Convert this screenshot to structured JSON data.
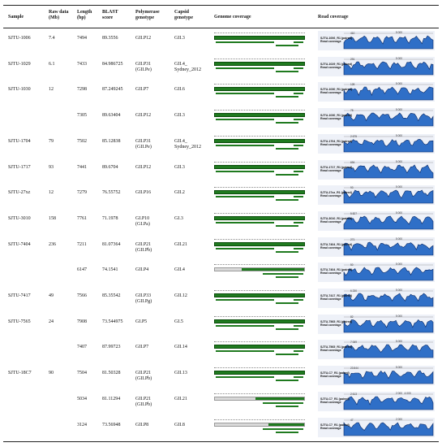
{
  "headers": {
    "sample": "Sample",
    "raw_data": "Raw data\n(Mb)",
    "length": "Length\n(bp)",
    "blast": "BLAST\nscore",
    "polymerase": "Polymerase\ngenotype",
    "capsid": "Capsid\ngenotype",
    "genome_coverage": "Genome coverage",
    "read_coverage": "Read coverage"
  },
  "rows": [
    {
      "sample": "SJTU-1006",
      "raw": "7.4",
      "length": "7494",
      "blast": "89.3556",
      "pol": "GII.P12",
      "cap": "GII.3",
      "read_label": "SJTU-1006_R1 (paired)\nRead coverage",
      "read_max": "410",
      "tick": "5 000",
      "partial": false
    },
    {
      "sample": "SJTU-1029",
      "raw": "6.1",
      "length": "7433",
      "blast": "84.986725",
      "pol": "GII.P31\n(GII.Pe)",
      "cap": "GII.4_\nSydney_2012",
      "read_label": "SJTU-1029_R1 (paired)\nRead coverage",
      "read_max": "291",
      "tick": "5 000",
      "partial": false
    },
    {
      "sample": "SJTU-1030",
      "raw": "12",
      "length": "7298",
      "blast": "87.249245",
      "pol": "GII.P7",
      "cap": "GII.6",
      "read_label": "SJTU-1030_R1 (paired)\nRead coverage",
      "read_max": "128",
      "tick": "5 000",
      "partial": false
    },
    {
      "sample": "",
      "raw": "",
      "length": "7305",
      "blast": "89.63404",
      "pol": "GII.P12",
      "cap": "GII.3",
      "read_label": "SJTU-1030_R1 (paired)\nRead coverage",
      "read_max": "78",
      "tick": "5 000",
      "partial": false
    },
    {
      "sample": "SJTU-1704",
      "raw": "79",
      "length": "7502",
      "blast": "85.12838",
      "pol": "GII.P31\n(GII.Pe)",
      "cap": "GII.4_\nSydney_2012",
      "read_label": "SJTU-1704_R1 (paired)\nRead coverage",
      "read_max": "2 675",
      "tick": "5 000",
      "partial": false
    },
    {
      "sample": "SJTU-1717",
      "raw": "93",
      "length": "7441",
      "blast": "89.6704",
      "pol": "GII.P12",
      "cap": "GII.3",
      "read_label": "SJTU-1717_R1 (paired)\nRead coverage",
      "read_max": "694",
      "tick": "5 000",
      "partial": false
    },
    {
      "sample": "SJTU-27xz",
      "raw": "12",
      "length": "7279",
      "blast": "76.55752",
      "pol": "GII.P16",
      "cap": "GII.2",
      "read_label": "SJTU-27xz_R1 (paired)\nRead coverage",
      "read_max": "93",
      "tick": "5 000",
      "partial": false
    },
    {
      "sample": "SJTU-3010",
      "raw": "158",
      "length": "7761",
      "blast": "71.1978",
      "pol": "GI.P10\n(GI.Pa)",
      "cap": "GI.3",
      "read_label": "SJTU-3010_R1 (paired)\nRead coverage",
      "read_max": "5 827",
      "tick": "5 000",
      "partial": false
    },
    {
      "sample": "SJTU-7404",
      "raw": "236",
      "length": "7211",
      "blast": "81.07364",
      "pol": "GII.P21\n(GII.Pb)",
      "cap": "GII.21",
      "read_label": "SJTU-7404_R1 (paired)\nRead coverage",
      "read_max": "271",
      "tick": "5 000",
      "partial": false
    },
    {
      "sample": "",
      "raw": "",
      "length": "6147",
      "blast": "74.1541",
      "pol": "GII.P4",
      "cap": "GII.4",
      "read_label": "SJTU-7404_R1 (paired)\nRead coverage",
      "read_max": "50",
      "tick": "5 000",
      "partial": true
    },
    {
      "sample": "SJTU-7417",
      "raw": "49",
      "length": "7566",
      "blast": "85.35542",
      "pol": "GII.P33\n(GII.Pg)",
      "cap": "GII.12",
      "read_label": "SJTU-7417_R1 (paired)\nRead coverage",
      "read_max": "6 230",
      "tick": "5 000",
      "partial": false
    },
    {
      "sample": "SJTU-7565",
      "raw": "24",
      "length": "7908",
      "blast": "73.544975",
      "pol": "GI.P5",
      "cap": "GI.5",
      "read_label": "SJTU-7565_R1 (paired)\nRead coverage",
      "read_max": "82",
      "tick": "5 000",
      "partial": false
    },
    {
      "sample": "",
      "raw": "",
      "length": "7407",
      "blast": "87.99723",
      "pol": "GII.P7",
      "cap": "GII.14",
      "read_label": "SJTU-7565_R1 (paired)\nRead coverage",
      "read_max": "7 069",
      "tick": "5 000",
      "partial": false
    },
    {
      "sample": "SJTU-18C7",
      "raw": "90",
      "length": "7504",
      "blast": "81.50328",
      "pol": "GII.P21\n(GII.Pb)",
      "cap": "GII.13",
      "read_label": "SJTU-C7_R1 (paired)\nRead coverage",
      "read_max": "23 844",
      "tick": "5 000",
      "partial": false
    },
    {
      "sample": "",
      "raw": "",
      "length": "5034",
      "blast": "81.11294",
      "pol": "GII.P21\n(GII.Pb)",
      "cap": "GII.21",
      "read_label": "SJTU-C7_R1 (paired)\nRead coverage",
      "read_max": "2 613",
      "tick": "2 000   4 000",
      "partial": true
    },
    {
      "sample": "",
      "raw": "",
      "length": "3124",
      "blast": "73.56948",
      "pol": "GII.P8",
      "cap": "GII.8",
      "read_label": "SJTU-C7_R1 (paired)\nRead coverage",
      "read_max": "47",
      "tick": "2 000",
      "partial": true
    }
  ]
}
